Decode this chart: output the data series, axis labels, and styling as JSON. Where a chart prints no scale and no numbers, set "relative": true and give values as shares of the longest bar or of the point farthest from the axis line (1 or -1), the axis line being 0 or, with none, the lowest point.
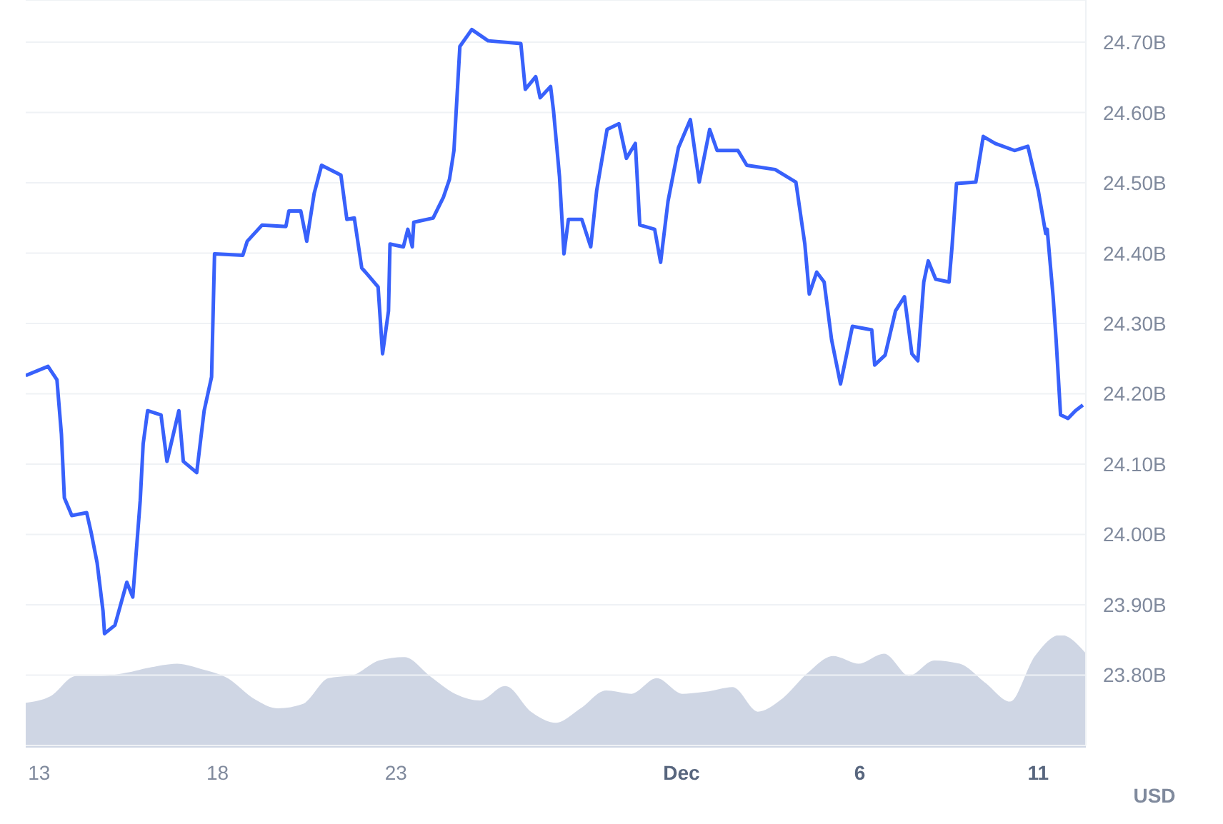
{
  "chart_data": [
    {
      "type": "line",
      "ylabel": "USD",
      "x": [
        "--11-12T15:00",
        "--11-13T06:00",
        "--11-13T12:00",
        "--11-13T15:00",
        "--11-13T17:00",
        "--11-13T22:00",
        "--11-14T08:00",
        "--11-14T11:00",
        "--11-14T15:00",
        "--11-14T19:00",
        "--11-14T20:00",
        "--11-15T03:00",
        "--11-15T11:00",
        "--11-15T15:00",
        "--11-15T20:00",
        "--11-15T22:00",
        "--11-16T01:00",
        "--11-16T10:00",
        "--11-16T14:00",
        "--11-16T22:00",
        "--11-17T01:00",
        "--11-17T10:00",
        "--11-17T15:00",
        "--11-17T20:00",
        "--11-17T22:00",
        "--11-18T17:00",
        "--11-18T20:00",
        "--11-19T06:00",
        "--11-19T22:00",
        "--11-20T00:00",
        "--11-20T08:00",
        "--11-20T12:00",
        "--11-20T17:00",
        "--11-20T22:00",
        "--11-21T11:00",
        "--11-21T15:00",
        "--11-21T20:00",
        "--11-22T01:00",
        "--11-22T06:00",
        "--11-22T12:00",
        "--11-22T15:00",
        "--11-22T19:00",
        "--11-22T20:00",
        "--11-23T05:00",
        "--11-23T08:00",
        "--11-23T11:00",
        "--11-23T12:00",
        "--11-24T01:00",
        "--11-24T08:00",
        "--11-24T12:00",
        "--11-24T15:00",
        "--11-24T19:00",
        "--11-25T03:00",
        "--11-25T14:00",
        "--11-26T12:00",
        "--11-26T15:00",
        "--11-26T22:00",
        "--11-27T01:00",
        "--11-27T08:00",
        "--11-27T10:00",
        "--11-27T14:00",
        "--11-27T17:00",
        "--11-27T20:00",
        "--11-28T05:00",
        "--11-28T11:00",
        "--11-28T15:00",
        "--11-28T22:00",
        "--11-29T06:00",
        "--11-29T11:00",
        "--11-29T17:00",
        "--11-29T20:00",
        "--11-30T06:00",
        "--11-30T10:00",
        "--11-30T15:00",
        "--11-30T22:00",
        "--12-01T06:00",
        "--12-01T12:00",
        "--12-01T19:00",
        "--12-02T00:00",
        "--12-02T14:00",
        "--12-02T20:00",
        "--12-03T15:00",
        "--12-04T05:00",
        "--12-04T11:00",
        "--12-04T14:00",
        "--12-04T19:00",
        "--12-05T00:00",
        "--12-05T05:00",
        "--12-05T11:00",
        "--12-05T19:00",
        "--12-06T08:00",
        "--12-06T10:00",
        "--12-06T17:00",
        "--12-07T00:00",
        "--12-07T06:00",
        "--12-07T11:00",
        "--12-07T15:00",
        "--12-07T19:00",
        "--12-07T22:00",
        "--12-08T03:00",
        "--12-08T12:00",
        "--12-08T14:00",
        "--12-08T17:00",
        "--12-09T06:00",
        "--12-09T11:00",
        "--12-09T19:00",
        "--12-10T08:00",
        "--12-10T17:00",
        "--12-11T00:00",
        "--12-11T05:00",
        "--12-11T06:00",
        "--12-11T10:00",
        "--12-11T12:00",
        "--12-11T15:00",
        "--12-11T20:00",
        "--12-12T01:00",
        "--12-12T06:00"
      ],
      "series": [
        {
          "color": "#3861fb",
          "values": [
            24.226,
            24.239,
            24.22,
            24.143,
            24.052,
            24.027,
            24.031,
            24.003,
            23.96,
            23.891,
            23.859,
            23.871,
            23.932,
            23.911,
            24.048,
            24.129,
            24.176,
            24.17,
            24.104,
            24.176,
            24.104,
            24.088,
            24.176,
            24.224,
            24.399,
            24.397,
            24.417,
            24.44,
            24.438,
            24.46,
            24.46,
            24.417,
            24.485,
            24.525,
            24.511,
            24.448,
            24.45,
            24.379,
            24.367,
            24.352,
            24.257,
            24.318,
            24.413,
            24.409,
            24.434,
            24.409,
            24.444,
            24.45,
            24.48,
            24.505,
            24.546,
            24.694,
            24.718,
            24.702,
            24.698,
            24.633,
            24.651,
            24.621,
            24.637,
            24.602,
            24.509,
            24.399,
            24.448,
            24.448,
            24.409,
            24.489,
            24.576,
            24.584,
            24.535,
            24.556,
            24.44,
            24.434,
            24.387,
            24.474,
            24.55,
            24.59,
            24.501,
            24.576,
            24.546,
            24.546,
            24.525,
            24.519,
            24.501,
            24.413,
            24.342,
            24.373,
            24.359,
            24.277,
            24.214,
            24.296,
            24.291,
            24.241,
            24.255,
            24.318,
            24.338,
            24.257,
            24.247,
            24.359,
            24.389,
            24.363,
            24.359,
            24.409,
            24.499,
            24.501,
            24.566,
            24.556,
            24.546,
            24.552,
            24.489,
            24.428,
            24.434,
            24.338,
            24.277,
            24.17,
            24.165,
            24.176,
            24.184
          ]
        }
      ],
      "xlim": [
        "--11-12T15:00",
        "--12-12T08:00"
      ],
      "xticks": [
        {
          "value": "--11-13",
          "label": "13"
        },
        {
          "value": "--11-18",
          "label": "18"
        },
        {
          "value": "--11-23",
          "label": "23"
        },
        {
          "value": "--12-01",
          "label": "Dec"
        },
        {
          "value": "--12-06",
          "label": "6"
        },
        {
          "value": "--12-11",
          "label": "11"
        }
      ],
      "ylim": [
        23.7,
        24.76
      ],
      "yticks": [
        {
          "value": 23.8,
          "label": "23.80B"
        },
        {
          "value": 23.9,
          "label": "23.90B"
        },
        {
          "value": 24,
          "label": "24.00B"
        },
        {
          "value": 24.1,
          "label": "24.10B"
        },
        {
          "value": 24.2,
          "label": "24.20B"
        },
        {
          "value": 24.3,
          "label": "24.30B"
        },
        {
          "value": 24.4,
          "label": "24.40B"
        },
        {
          "value": 24.5,
          "label": "24.50B"
        },
        {
          "value": 24.6,
          "label": "24.60B"
        },
        {
          "value": 24.7,
          "label": "24.70B"
        }
      ],
      "grid": "y",
      "legend": false,
      "marker": "none",
      "line_style": "solid"
    },
    {
      "type": "area",
      "relative": true,
      "categories": [
        null,
        null,
        null,
        null,
        null,
        null,
        null,
        null,
        null,
        null,
        null,
        null,
        null,
        null,
        null,
        null,
        null,
        null,
        null,
        null,
        null,
        null,
        null,
        null,
        null,
        null,
        null,
        null,
        null,
        null,
        null,
        null,
        null,
        null,
        null,
        null,
        null,
        null,
        null,
        null,
        null,
        null,
        null
      ],
      "series": [
        {
          "color": "#cfd6e4",
          "values": [
            0.39,
            0.45,
            0.63,
            0.63,
            0.66,
            0.71,
            0.74,
            0.69,
            0.61,
            0.43,
            0.34,
            0.38,
            0.61,
            0.64,
            0.77,
            0.8,
            0.63,
            0.47,
            0.41,
            0.54,
            0.31,
            0.21,
            0.34,
            0.5,
            0.47,
            0.61,
            0.47,
            0.49,
            0.53,
            0.31,
            0.43,
            0.66,
            0.81,
            0.74,
            0.83,
            0.63,
            0.77,
            0.74,
            0.57,
            0.4,
            0.81,
            1,
            0.83
          ]
        }
      ],
      "legend": false
    }
  ]
}
